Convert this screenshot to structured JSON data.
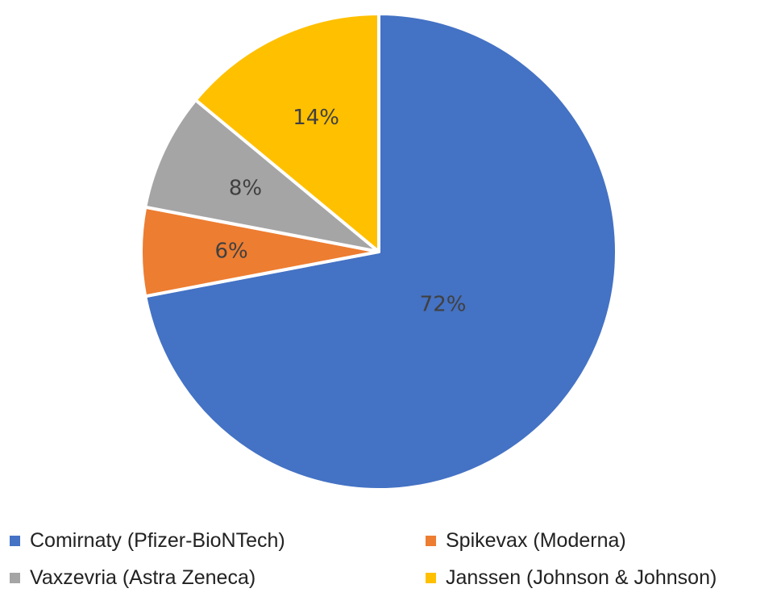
{
  "chart_data": {
    "type": "pie",
    "slices": [
      {
        "name": "Comirnaty (Pfizer-BioNTech)",
        "value": 72,
        "label": "72%",
        "color": "#4472C4"
      },
      {
        "name": "Spikevax (Moderna)",
        "value": 6,
        "label": "6%",
        "color": "#ED7D31"
      },
      {
        "name": "Vaxzevria (Astra Zeneca)",
        "value": 8,
        "label": "8%",
        "color": "#A5A5A5"
      },
      {
        "name": "Janssen (Johnson & Johnson)",
        "value": 14,
        "label": "14%",
        "color": "#FFC000"
      }
    ],
    "start_angle": "12 o'clock",
    "direction": "clockwise",
    "legend_position": "bottom"
  }
}
